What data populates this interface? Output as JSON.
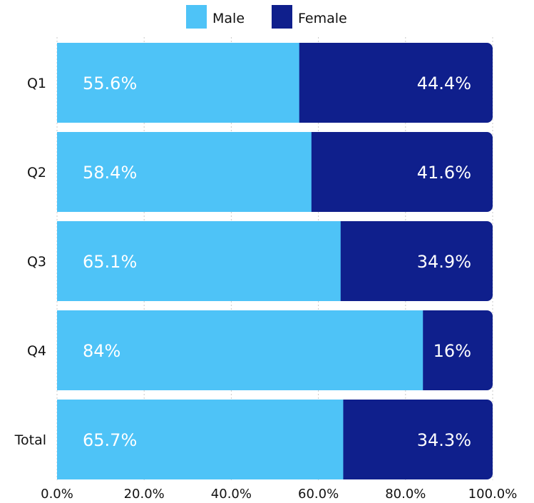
{
  "chart_data": {
    "type": "bar",
    "orientation": "horizontal",
    "stacked": true,
    "categories": [
      "Q1",
      "Q2",
      "Q3",
      "Q4",
      "Total"
    ],
    "series": [
      {
        "name": "Male",
        "color": "#4ec3f7",
        "values": [
          55.6,
          58.4,
          65.1,
          84,
          65.7
        ],
        "labels": [
          "55.6%",
          "58.4%",
          "65.1%",
          "84%",
          "65.7%"
        ]
      },
      {
        "name": "Female",
        "color": "#0f1f8c",
        "values": [
          44.4,
          41.6,
          34.9,
          16,
          34.3
        ],
        "labels": [
          "44.4%",
          "41.6%",
          "34.9%",
          "16%",
          "34.3%"
        ]
      }
    ],
    "xlim": [
      0,
      100
    ],
    "x_ticks": [
      "0.0%",
      "20.0%",
      "40.0%",
      "60.0%",
      "80.0%",
      "100.0%"
    ],
    "grid": true,
    "legend_position": "top-center"
  }
}
